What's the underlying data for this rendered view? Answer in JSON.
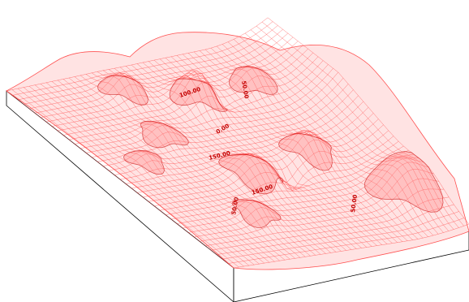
{
  "colors": {
    "background": "#ffffff",
    "mesh_stroke": "#ff3b3b",
    "surface_fill": "#ffd0d0",
    "contour_stroke": "#c40000",
    "contour_fill": "#ff8080",
    "base_edge": "#000000"
  },
  "contour_labels": [
    {
      "id": "label-1",
      "text": "50.00"
    },
    {
      "id": "label-2",
      "text": "100.00"
    },
    {
      "id": "label-3",
      "text": "0.00"
    },
    {
      "id": "label-4",
      "text": "150.00"
    },
    {
      "id": "label-5",
      "text": "150.00"
    },
    {
      "id": "label-6",
      "text": "50.00"
    },
    {
      "id": "label-7",
      "text": "50.00"
    }
  ]
}
